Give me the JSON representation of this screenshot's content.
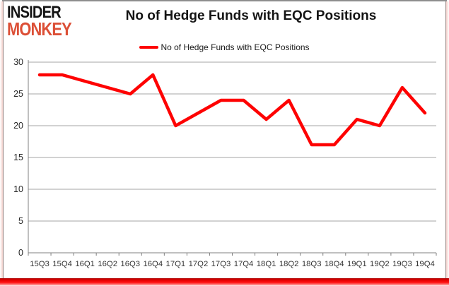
{
  "logo": {
    "line1": "INSIDER",
    "line2": "MONKEY"
  },
  "title": "No of Hedge Funds with EQC Positions",
  "legend": {
    "label": "No of Hedge Funds with EQC Positions"
  },
  "colors": {
    "series_red": "#fe0202",
    "logo_red": "#dc4f36",
    "gridline": "#a6a6a6",
    "axis": "#808080",
    "tick_label": "#333333",
    "bottom_bar_red": "#ff1313"
  },
  "chart_data": {
    "type": "line",
    "title": "No of Hedge Funds with EQC Positions",
    "categories": [
      "15Q3",
      "15Q4",
      "16Q1",
      "16Q2",
      "16Q3",
      "16Q4",
      "17Q1",
      "17Q2",
      "17Q3",
      "17Q4",
      "18Q1",
      "18Q2",
      "18Q3",
      "18Q4",
      "19Q1",
      "19Q2",
      "19Q3",
      "19Q4"
    ],
    "series": [
      {
        "name": "No of Hedge Funds with EQC Positions",
        "color": "#fe0202",
        "values": [
          28,
          28,
          27,
          26,
          25,
          28,
          20,
          22,
          24,
          24,
          21,
          24,
          17,
          17,
          21,
          20,
          26,
          22
        ]
      }
    ],
    "xlabel": "",
    "ylabel": "",
    "ylim": [
      0,
      30
    ],
    "yticks": [
      0,
      5,
      10,
      15,
      20,
      25,
      30
    ],
    "grid": true,
    "legend_position": "top-center"
  }
}
